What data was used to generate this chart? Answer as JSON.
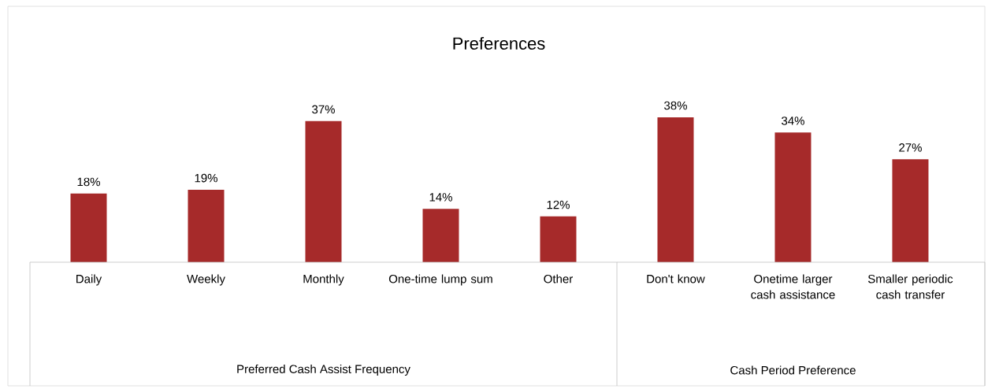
{
  "chart_data": {
    "type": "bar",
    "title": "Preferences",
    "categories": [
      "Daily",
      "Weekly",
      "Monthly",
      "One-time lump sum",
      "Other",
      "Don't know",
      "Onetime larger cash assistance",
      "Smaller periodic cash transfer"
    ],
    "values": [
      18,
      19,
      37,
      14,
      12,
      38,
      34,
      27
    ],
    "value_labels": [
      "18%",
      "19%",
      "37%",
      "14%",
      "12%",
      "38%",
      "34%",
      "27%"
    ],
    "color": "#a62a2a",
    "annotations": [
      "Preferred Cash Assist Frequency",
      "Cash Period Preference"
    ]
  }
}
